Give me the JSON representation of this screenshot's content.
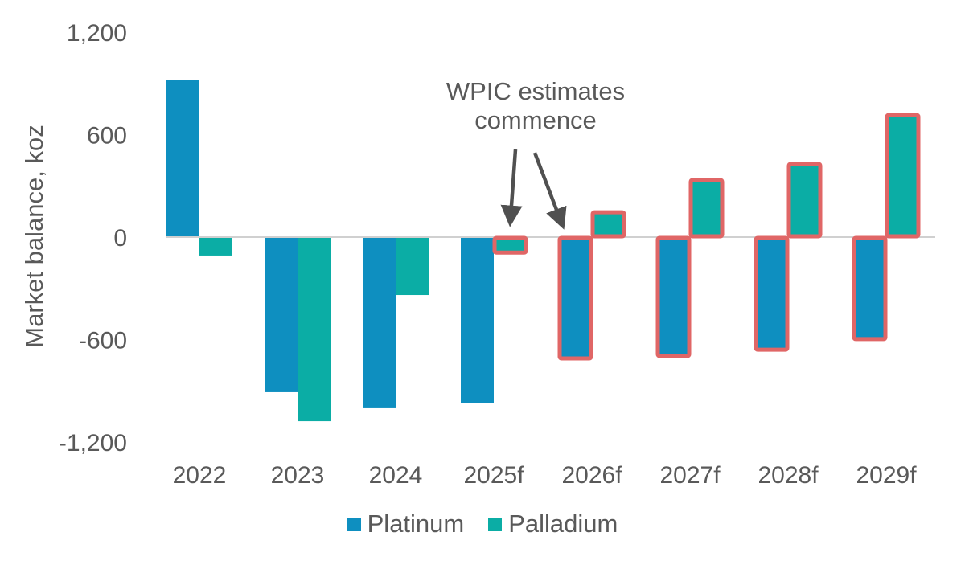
{
  "chart_data": {
    "type": "bar",
    "title": "",
    "xlabel": "",
    "ylabel": "Market balance, koz",
    "ylim": [
      -1200,
      1200
    ],
    "yticks": [
      1200,
      600,
      0,
      -600,
      -1200
    ],
    "ytick_labels": [
      "1,200",
      "600",
      "0",
      "-600",
      "-1,200"
    ],
    "categories": [
      "2022",
      "2023",
      "2024",
      "2025f",
      "2026f",
      "2027f",
      "2028f",
      "2029f"
    ],
    "series": [
      {
        "name": "Platinum",
        "color": "#0E8FC0",
        "values": [
          922,
          -908,
          -1002,
          -974,
          -715,
          -701,
          -664,
          -602
        ]
      },
      {
        "name": "Palladium",
        "color": "#0BADA5",
        "values": [
          -108,
          -1078,
          -339,
          -95,
          150,
          339,
          433,
          720
        ]
      }
    ],
    "highlight": {
      "color": "#E06666",
      "description": "Red outlines mark WPIC estimate bars",
      "bars": [
        {
          "series": "Palladium",
          "category": "2025f"
        },
        {
          "series": "Platinum",
          "category": "2026f"
        },
        {
          "series": "Palladium",
          "category": "2026f"
        },
        {
          "series": "Platinum",
          "category": "2027f"
        },
        {
          "series": "Palladium",
          "category": "2027f"
        },
        {
          "series": "Platinum",
          "category": "2028f"
        },
        {
          "series": "Palladium",
          "category": "2028f"
        },
        {
          "series": "Platinum",
          "category": "2029f"
        },
        {
          "series": "Palladium",
          "category": "2029f"
        }
      ]
    },
    "annotations": [
      {
        "text_lines": [
          "WPIC estimates",
          "commence"
        ],
        "arrows_to": [
          "2025f Palladium",
          "2026f Platinum"
        ]
      }
    ],
    "grid": false,
    "legend_position": "bottom"
  },
  "legend": {
    "items": [
      {
        "label": "Platinum",
        "color": "#0E8FC0"
      },
      {
        "label": "Palladium",
        "color": "#0BADA5"
      }
    ]
  },
  "annotation": {
    "line1": "WPIC estimates",
    "line2": "commence"
  },
  "axis": {
    "y_title": "Market balance, koz"
  }
}
